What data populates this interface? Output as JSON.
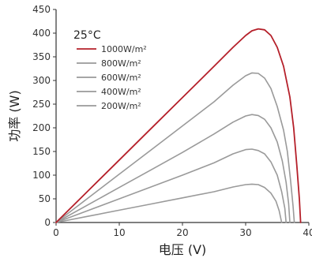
{
  "chart_data": {
    "type": "line",
    "title": "",
    "annotation": "25°C",
    "xlabel": "电压 (V)",
    "ylabel": "功率 (W)",
    "xlim": [
      0,
      40
    ],
    "ylim": [
      0,
      450
    ],
    "x_ticks": [
      0,
      10,
      20,
      30,
      40
    ],
    "y_ticks": [
      0,
      50,
      100,
      150,
      200,
      250,
      300,
      350,
      400,
      450
    ],
    "grid": false,
    "legend_position": "top-left",
    "series": [
      {
        "name": "1000W/m²",
        "color": "#b5202a",
        "points": [
          [
            0,
            0
          ],
          [
            5,
            66
          ],
          [
            10,
            132
          ],
          [
            15,
            198
          ],
          [
            20,
            264
          ],
          [
            25,
            330
          ],
          [
            28,
            370
          ],
          [
            30,
            395
          ],
          [
            31,
            405
          ],
          [
            32,
            409
          ],
          [
            33,
            407
          ],
          [
            34,
            395
          ],
          [
            35,
            370
          ],
          [
            36,
            330
          ],
          [
            37,
            265
          ],
          [
            37.6,
            200
          ],
          [
            38.1,
            120
          ],
          [
            38.5,
            50
          ],
          [
            38.7,
            0
          ]
        ]
      },
      {
        "name": "800W/m²",
        "color": "#9a9a9a",
        "points": [
          [
            0,
            0
          ],
          [
            5,
            51
          ],
          [
            10,
            102
          ],
          [
            15,
            153
          ],
          [
            20,
            204
          ],
          [
            25,
            255
          ],
          [
            28,
            290
          ],
          [
            30,
            310
          ],
          [
            31,
            316
          ],
          [
            32,
            315
          ],
          [
            33,
            305
          ],
          [
            34,
            283
          ],
          [
            35,
            245
          ],
          [
            36,
            195
          ],
          [
            36.6,
            150
          ],
          [
            37.1,
            90
          ],
          [
            37.5,
            35
          ],
          [
            37.7,
            0
          ]
        ]
      },
      {
        "name": "600W/m²",
        "color": "#9a9a9a",
        "points": [
          [
            0,
            0
          ],
          [
            5,
            37
          ],
          [
            10,
            74
          ],
          [
            15,
            111
          ],
          [
            20,
            148
          ],
          [
            25,
            187
          ],
          [
            28,
            212
          ],
          [
            30,
            225
          ],
          [
            31,
            228
          ],
          [
            32,
            226
          ],
          [
            33,
            218
          ],
          [
            34,
            200
          ],
          [
            35,
            170
          ],
          [
            35.8,
            130
          ],
          [
            36.4,
            85
          ],
          [
            36.8,
            40
          ],
          [
            37.0,
            0
          ]
        ]
      },
      {
        "name": "400W/m²",
        "color": "#9a9a9a",
        "points": [
          [
            0,
            0
          ],
          [
            5,
            25
          ],
          [
            10,
            50
          ],
          [
            15,
            75
          ],
          [
            20,
            100
          ],
          [
            25,
            126
          ],
          [
            28,
            145
          ],
          [
            30,
            154
          ],
          [
            31,
            155
          ],
          [
            32,
            152
          ],
          [
            33,
            145
          ],
          [
            34,
            128
          ],
          [
            35,
            100
          ],
          [
            35.7,
            65
          ],
          [
            36.2,
            30
          ],
          [
            36.4,
            0
          ]
        ]
      },
      {
        "name": "200W/m²",
        "color": "#9a9a9a",
        "points": [
          [
            0,
            0
          ],
          [
            5,
            13
          ],
          [
            10,
            26
          ],
          [
            15,
            39
          ],
          [
            20,
            52
          ],
          [
            25,
            65
          ],
          [
            28,
            75
          ],
          [
            30,
            80
          ],
          [
            31,
            81
          ],
          [
            32,
            80
          ],
          [
            33,
            74
          ],
          [
            34,
            62
          ],
          [
            34.8,
            45
          ],
          [
            35.3,
            25
          ],
          [
            35.7,
            0
          ]
        ]
      }
    ]
  }
}
